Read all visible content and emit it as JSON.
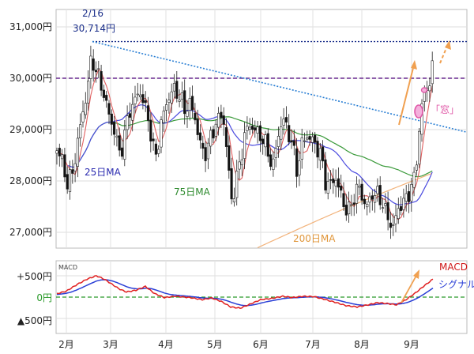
{
  "chart_data": [
    {
      "type": "candlestick",
      "ylim": [
        26700,
        31300
      ],
      "y_ticks": [
        27000,
        28000,
        29000,
        30000,
        31000
      ],
      "y_tick_labels": [
        "27,000円",
        "28,000円",
        "29,000円",
        "30,000円",
        "31,000円"
      ],
      "x_months": [
        "2月",
        "3月",
        "4月",
        "5月",
        "6月",
        "7月",
        "8月",
        "9月"
      ],
      "grid": true,
      "peak": {
        "date_label": "2/16",
        "value_label": "30,714円",
        "value": 30714
      },
      "horizontal_lines": [
        {
          "name": "peak-line",
          "value": 30714,
          "color": "#1a2e8a",
          "style": "dotted"
        },
        {
          "name": "level-30000",
          "value": 30000,
          "color": "#6a2c91",
          "style": "dashed"
        }
      ],
      "annotations": [
        {
          "name": "gap",
          "label": "「窓」",
          "color": "#e05aa8"
        }
      ],
      "series": [
        {
          "name": "25日MA",
          "color": "#4a4adf"
        },
        {
          "name": "75日MA",
          "color": "#3a9a3a"
        },
        {
          "name": "200日MA",
          "color": "#f2b27a"
        }
      ],
      "label_colors": {
        "ma25": "#2b2bb0",
        "ma75": "#2d8a2d",
        "ma200": "#e0963a"
      },
      "up_color": "#ffffff",
      "down_color": "#111111",
      "price_line_color": "#e06060",
      "trend_color": "#2a7fd4",
      "arrow_color": "#f0a050"
    },
    {
      "type": "line",
      "ylim": [
        -700,
        700
      ],
      "y_ticks": [
        500,
        0,
        -500
      ],
      "y_tick_labels": [
        "+500円",
        "0円",
        "▲500円"
      ],
      "series": [
        {
          "name": "MACD",
          "color": "#e02020"
        },
        {
          "name": "シグナル",
          "color": "#2a3fd6"
        }
      ],
      "zero_line_color": "#2a9a2a",
      "corner_label": "MACD"
    }
  ]
}
